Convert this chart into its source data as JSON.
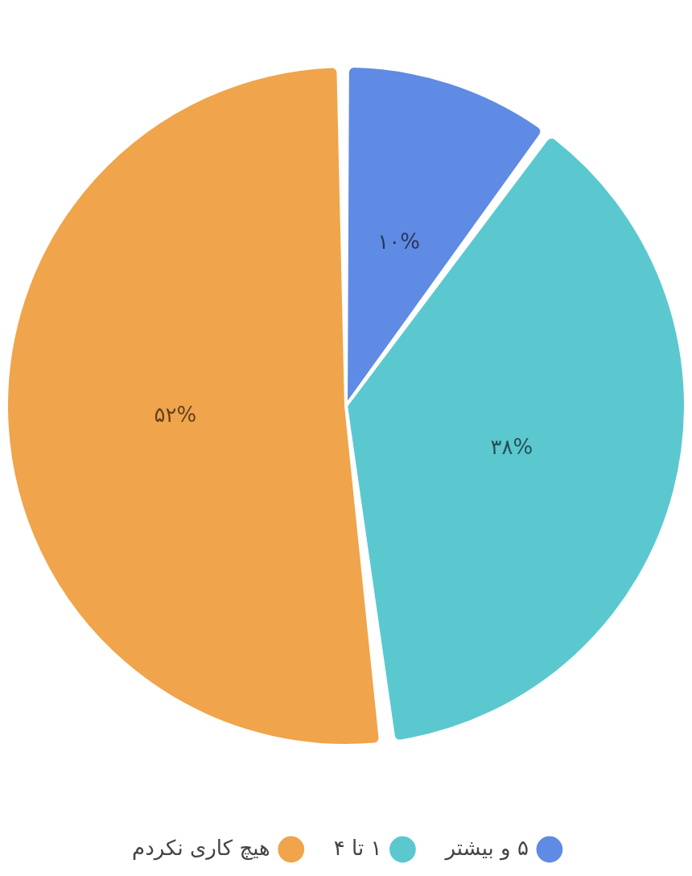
{
  "chart_data": {
    "type": "pie",
    "categories": [
      "۵ و بیشتر",
      "۱ تا ۴",
      "هیچ کاری نکردم"
    ],
    "values": [
      10,
      38,
      52
    ],
    "colors": [
      "#5f8be4",
      "#5bc8d0",
      "#f0a44b"
    ],
    "value_labels": [
      "۱۰%",
      "۳۸%",
      "۵۲%"
    ],
    "legend": "bottom"
  }
}
